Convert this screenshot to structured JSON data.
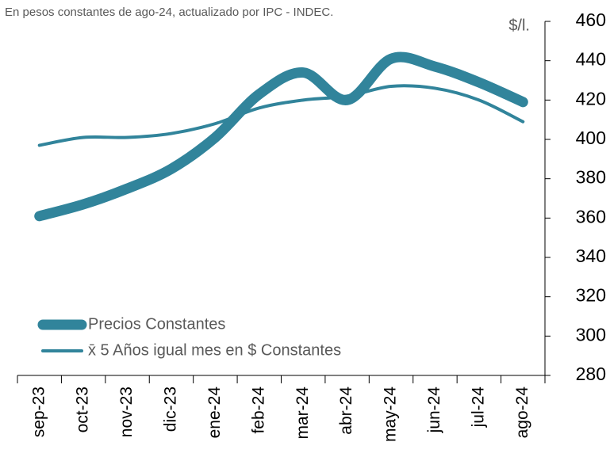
{
  "chart_data": {
    "type": "line",
    "subtitle": "En pesos constantes de ago-24, actualizado por IPC - INDEC.",
    "y_label": "$/l.",
    "categories": [
      "sep-23",
      "oct-23",
      "nov-23",
      "dic-23",
      "ene-24",
      "feb-24",
      "mar-24",
      "abr-24",
      "may-24",
      "jun-24",
      "jul-24",
      "ago-24"
    ],
    "series": [
      {
        "name": "Precios Constantes",
        "color": "#31849b",
        "values": [
          361,
          367,
          375,
          385,
          401,
          423,
          434,
          420,
          441,
          437,
          429,
          419
        ]
      },
      {
        "name": "x̄ 5 Años igual mes en $ Constantes",
        "color": "#31849b",
        "values": [
          397,
          401,
          401,
          403,
          408,
          416,
          420,
          422,
          427,
          426,
          420,
          409
        ]
      }
    ],
    "ylim": [
      280,
      460
    ],
    "yticks": [
      280,
      300,
      320,
      340,
      360,
      380,
      400,
      420,
      440,
      460
    ],
    "legend": "lower left",
    "grid": false
  }
}
